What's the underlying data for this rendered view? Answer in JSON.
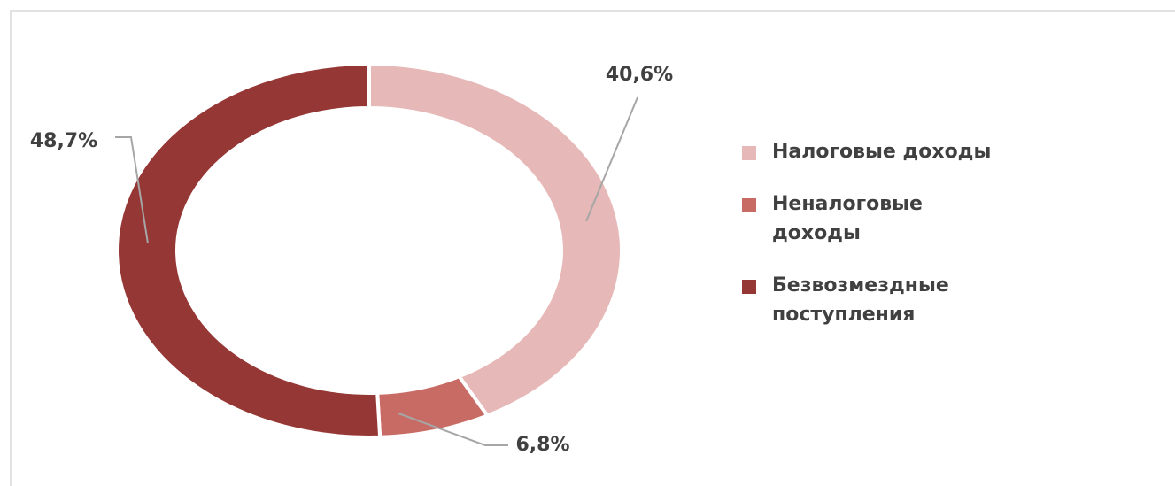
{
  "chart_data": {
    "type": "donut",
    "categories": [
      "Налоговые доходы",
      "Неналоговые доходы",
      "Безвозмездные поступления"
    ],
    "values": [
      40.6,
      6.8,
      48.7
    ],
    "value_labels": [
      "40,6%",
      "6,8%",
      "48,7%"
    ],
    "colors": [
      "#e6b8b7",
      "#c96b65",
      "#953735"
    ],
    "legend": "right"
  }
}
